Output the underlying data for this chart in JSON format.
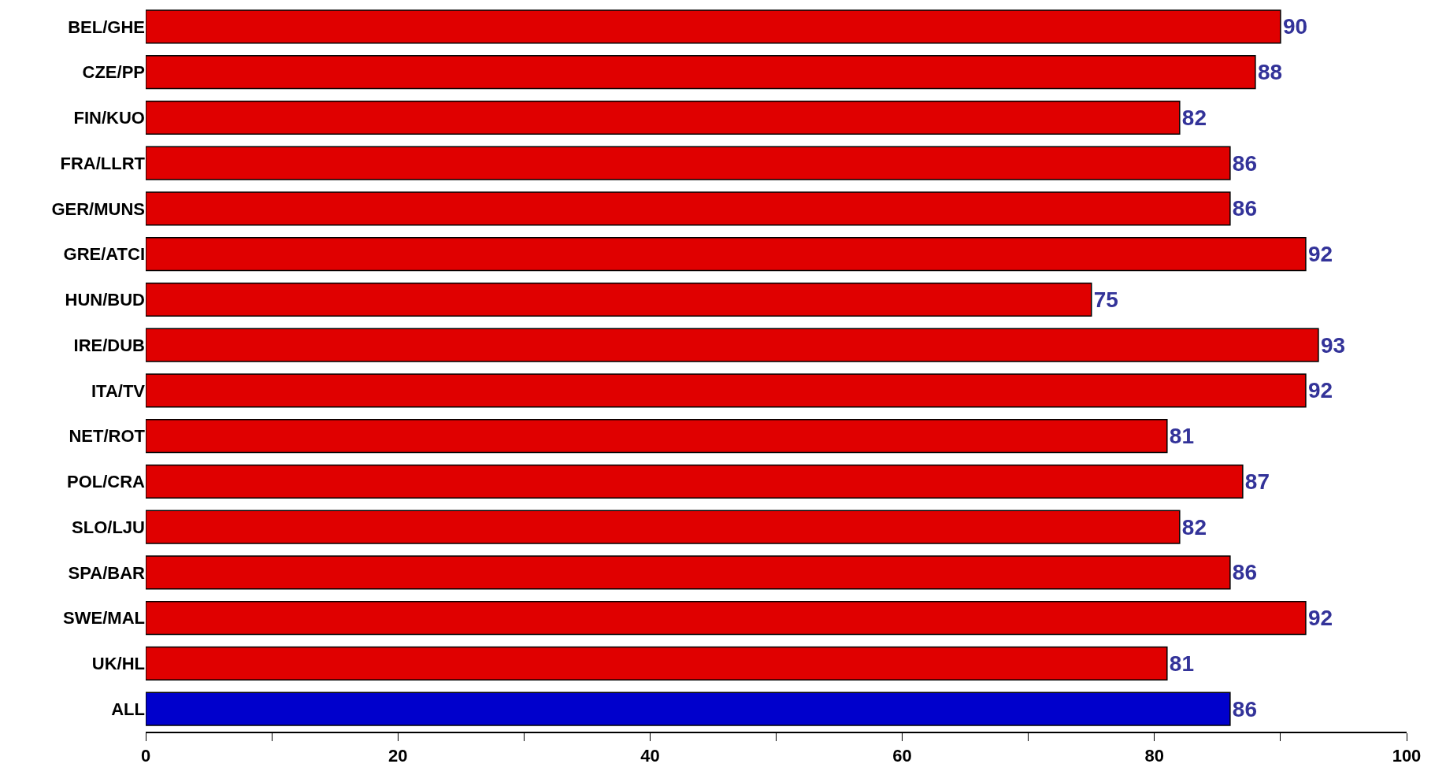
{
  "chart_data": {
    "type": "bar",
    "orientation": "horizontal",
    "categories": [
      "BEL/GHE",
      "CZE/PP",
      "FIN/KUO",
      "FRA/LLRT",
      "GER/MUNS",
      "GRE/ATCI",
      "HUN/BUD",
      "IRE/DUB",
      "ITA/TV",
      "NET/ROT",
      "POL/CRA",
      "SLO/LJU",
      "SPA/BAR",
      "SWE/MAL",
      "UK/HL",
      "ALL"
    ],
    "values": [
      90,
      88,
      82,
      86,
      86,
      92,
      75,
      93,
      92,
      81,
      87,
      82,
      86,
      92,
      81,
      86
    ],
    "colors": [
      "#e00000",
      "#e00000",
      "#e00000",
      "#e00000",
      "#e00000",
      "#e00000",
      "#e00000",
      "#e00000",
      "#e00000",
      "#e00000",
      "#e00000",
      "#e00000",
      "#e00000",
      "#e00000",
      "#e00000",
      "#0000cc"
    ],
    "data_labels": true,
    "xlim": [
      0,
      100
    ],
    "xticks": [
      0,
      {
        "value": 10,
        "label": null
      },
      20,
      {
        "value": 30,
        "label": null
      },
      40,
      {
        "value": 50,
        "label": null
      },
      60,
      {
        "value": 70,
        "label": null
      },
      80,
      {
        "value": 90,
        "label": null
      },
      100
    ]
  }
}
